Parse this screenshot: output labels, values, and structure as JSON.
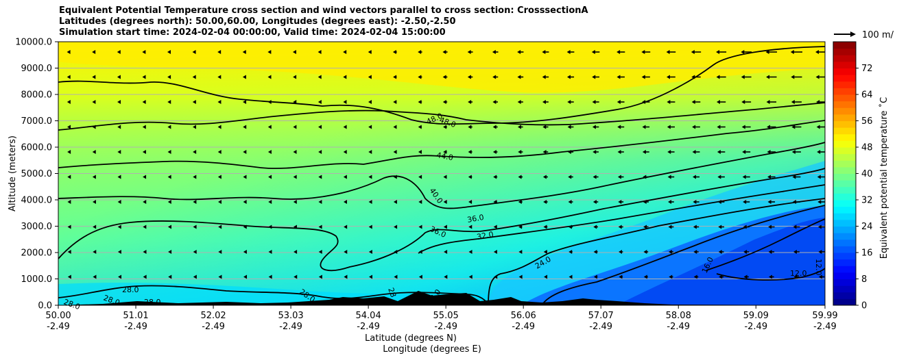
{
  "chart_data": {
    "type": "contourf",
    "title_lines": [
      "Equivalent Potential Temperature cross section and wind vectors parallel to cross section: CrosssectionA",
      "Latitudes (degrees north): 50.00,60.00, Longitudes (degrees east): -2.50,-2.50",
      "Simulation start time: 2024-02-04 00:00:00, Valid time: 2024-02-04 15:00:00"
    ],
    "xlabel_lines": [
      "Latitude (degrees N)",
      "Longitude (degrees E)"
    ],
    "ylabel": "Altitude (meters)",
    "x_ticks": [
      {
        "lat": "50.00",
        "lon": "-2.49"
      },
      {
        "lat": "51.01",
        "lon": "-2.49"
      },
      {
        "lat": "52.02",
        "lon": "-2.49"
      },
      {
        "lat": "53.03",
        "lon": "-2.49"
      },
      {
        "lat": "54.04",
        "lon": "-2.49"
      },
      {
        "lat": "55.05",
        "lon": "-2.49"
      },
      {
        "lat": "56.06",
        "lon": "-2.49"
      },
      {
        "lat": "57.07",
        "lon": "-2.49"
      },
      {
        "lat": "58.08",
        "lon": "-2.49"
      },
      {
        "lat": "59.09",
        "lon": "-2.49"
      },
      {
        "lat": "59.99",
        "lon": "-2.49"
      }
    ],
    "xlim": [
      50.0,
      59.99
    ],
    "y_ticks": [
      "0.0",
      "1000.0",
      "2000.0",
      "3000.0",
      "4000.0",
      "5000.0",
      "6000.0",
      "7000.0",
      "8000.0",
      "9000.0",
      "10000.0"
    ],
    "ylim": [
      0,
      10000
    ],
    "grid": "horizontal",
    "colorbar": {
      "label": "Equivalent potential temperature $^\\circ$C",
      "label_text": "Equivalent potential temperature ˚C",
      "ticks": [
        "0",
        "8",
        "16",
        "24",
        "32",
        "40",
        "48",
        "56",
        "64",
        "72"
      ],
      "range": [
        0,
        80
      ],
      "colormap": "jet"
    },
    "contour_labels": [
      "28.0",
      "28.0",
      "28.0",
      "28.0",
      "28.0",
      "28",
      "8.0",
      "24.0",
      "16.0",
      "12.0",
      "12.0",
      "32.0",
      "36.0",
      "36.0",
      "40.0",
      "44.0",
      "48.0",
      "48.0"
    ],
    "contour_levels": [
      12,
      16,
      24,
      28,
      32,
      36,
      40,
      44,
      48
    ],
    "theta_e_field_description": "values decrease from ~48 aloft to ~12-20 near surface in the north",
    "wind_key": {
      "label": "100 m/",
      "speed": 100
    },
    "wind_direction": "toward decreasing latitude (leftward) at most levels"
  }
}
